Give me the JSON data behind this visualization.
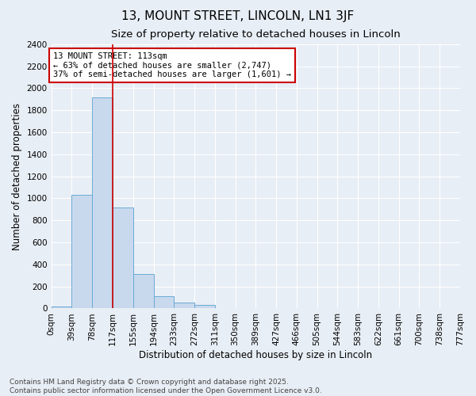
{
  "title": "13, MOUNT STREET, LINCOLN, LN1 3JF",
  "subtitle": "Size of property relative to detached houses in Lincoln",
  "xlabel": "Distribution of detached houses by size in Lincoln",
  "ylabel": "Number of detached properties",
  "bins": [
    "0sqm",
    "39sqm",
    "78sqm",
    "117sqm",
    "155sqm",
    "194sqm",
    "233sqm",
    "272sqm",
    "311sqm",
    "350sqm",
    "389sqm",
    "427sqm",
    "466sqm",
    "505sqm",
    "544sqm",
    "583sqm",
    "622sqm",
    "661sqm",
    "700sqm",
    "738sqm",
    "777sqm"
  ],
  "bar_heights": [
    20,
    1030,
    1920,
    920,
    310,
    108,
    53,
    30,
    0,
    0,
    0,
    0,
    0,
    0,
    0,
    0,
    0,
    0,
    0,
    0
  ],
  "bar_color": "#c8d9ee",
  "bar_edge_color": "#6aaad4",
  "vline_x": 3,
  "vline_color": "#cc0000",
  "annotation_line1": "13 MOUNT STREET: 113sqm",
  "annotation_line2": "← 63% of detached houses are smaller (2,747)",
  "annotation_line3": "37% of semi-detached houses are larger (1,601) →",
  "annotation_box_color": "#cc0000",
  "annotation_bg": "#ffffff",
  "ylim": [
    0,
    2400
  ],
  "yticks": [
    0,
    200,
    400,
    600,
    800,
    1000,
    1200,
    1400,
    1600,
    1800,
    2000,
    2200,
    2400
  ],
  "footer1": "Contains HM Land Registry data © Crown copyright and database right 2025.",
  "footer2": "Contains public sector information licensed under the Open Government Licence v3.0.",
  "bg_color": "#e8eef5",
  "plot_bg_color": "#e8eef5",
  "title_fontsize": 11,
  "subtitle_fontsize": 9.5,
  "axis_label_fontsize": 8.5,
  "tick_fontsize": 7.5,
  "annotation_fontsize": 7.5,
  "footer_fontsize": 6.5
}
